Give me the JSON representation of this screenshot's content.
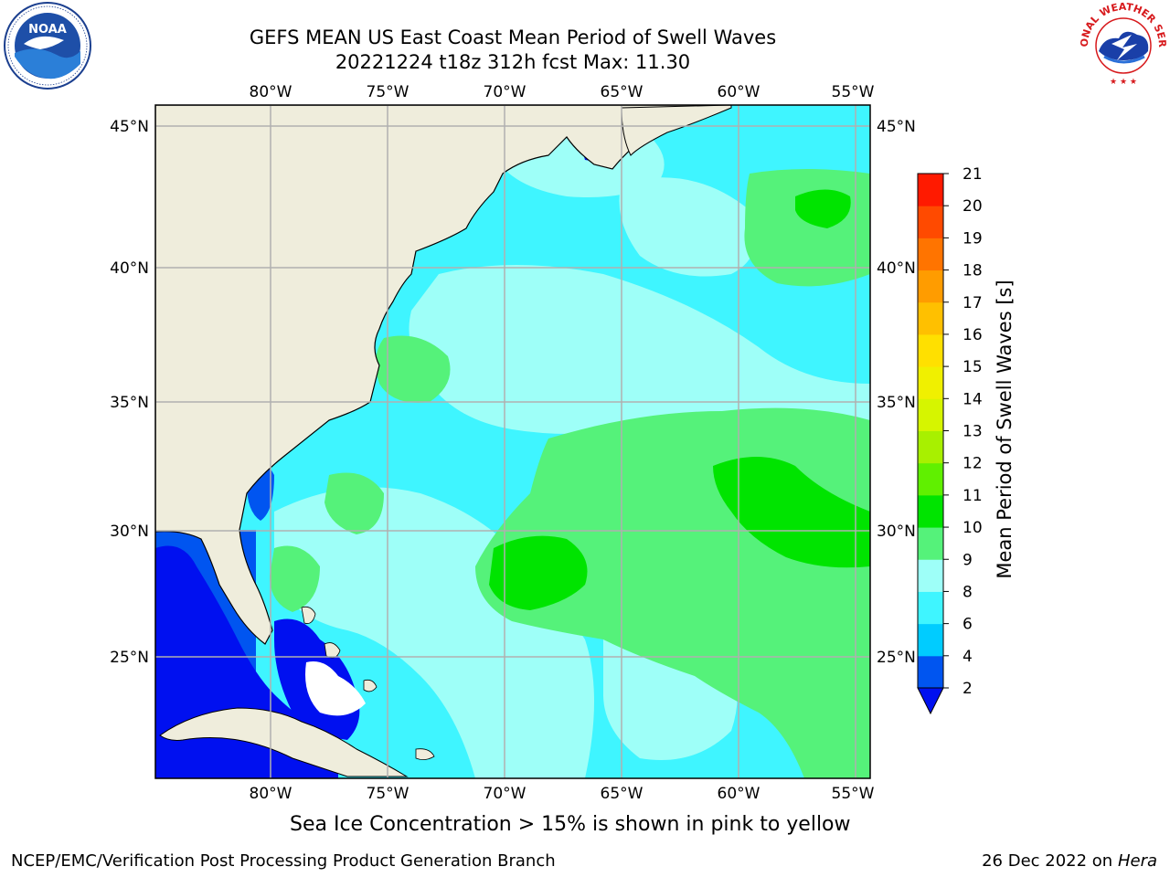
{
  "title_line1": "GEFS MEAN US East Coast Mean Period of Swell Waves",
  "title_line2": "20221224 t18z 312h fcst   Max: 11.30",
  "logos": {
    "left": "NOAA",
    "right": "NATIONAL WEATHER SERVICE"
  },
  "map": {
    "lon_labels": [
      "80°W",
      "75°W",
      "70°W",
      "65°W",
      "60°W",
      "55°W"
    ],
    "lat_labels": [
      "45°N",
      "40°N",
      "35°N",
      "30°N",
      "25°N"
    ],
    "colors": {
      "land": "#efeddc",
      "grid": "#b0b0b0",
      "coast": "#000000"
    }
  },
  "colorbar": {
    "label": "Mean Period of Swell Waves [s]",
    "ticks": [
      "2",
      "4",
      "6",
      "8",
      "9",
      "10",
      "11",
      "12",
      "13",
      "14",
      "15",
      "16",
      "17",
      "18",
      "19",
      "20",
      "21"
    ],
    "colors": [
      "#0055f0",
      "#00ccff",
      "#3ff5ff",
      "#9efff8",
      "#55f27a",
      "#00e400",
      "#60f000",
      "#a8f000",
      "#d6f500",
      "#f0f000",
      "#ffe000",
      "#ffc000",
      "#ff9c00",
      "#ff7400",
      "#ff4a00",
      "#ff1a00"
    ],
    "under_color": "#0010f0"
  },
  "note": "Sea Ice Concentration > 15% is shown in pink to yellow",
  "credit": "NCEP/EMC/Verification Post Processing Product Generation Branch",
  "date_text": "26 Dec 2022 on",
  "date_host": "Hera"
}
